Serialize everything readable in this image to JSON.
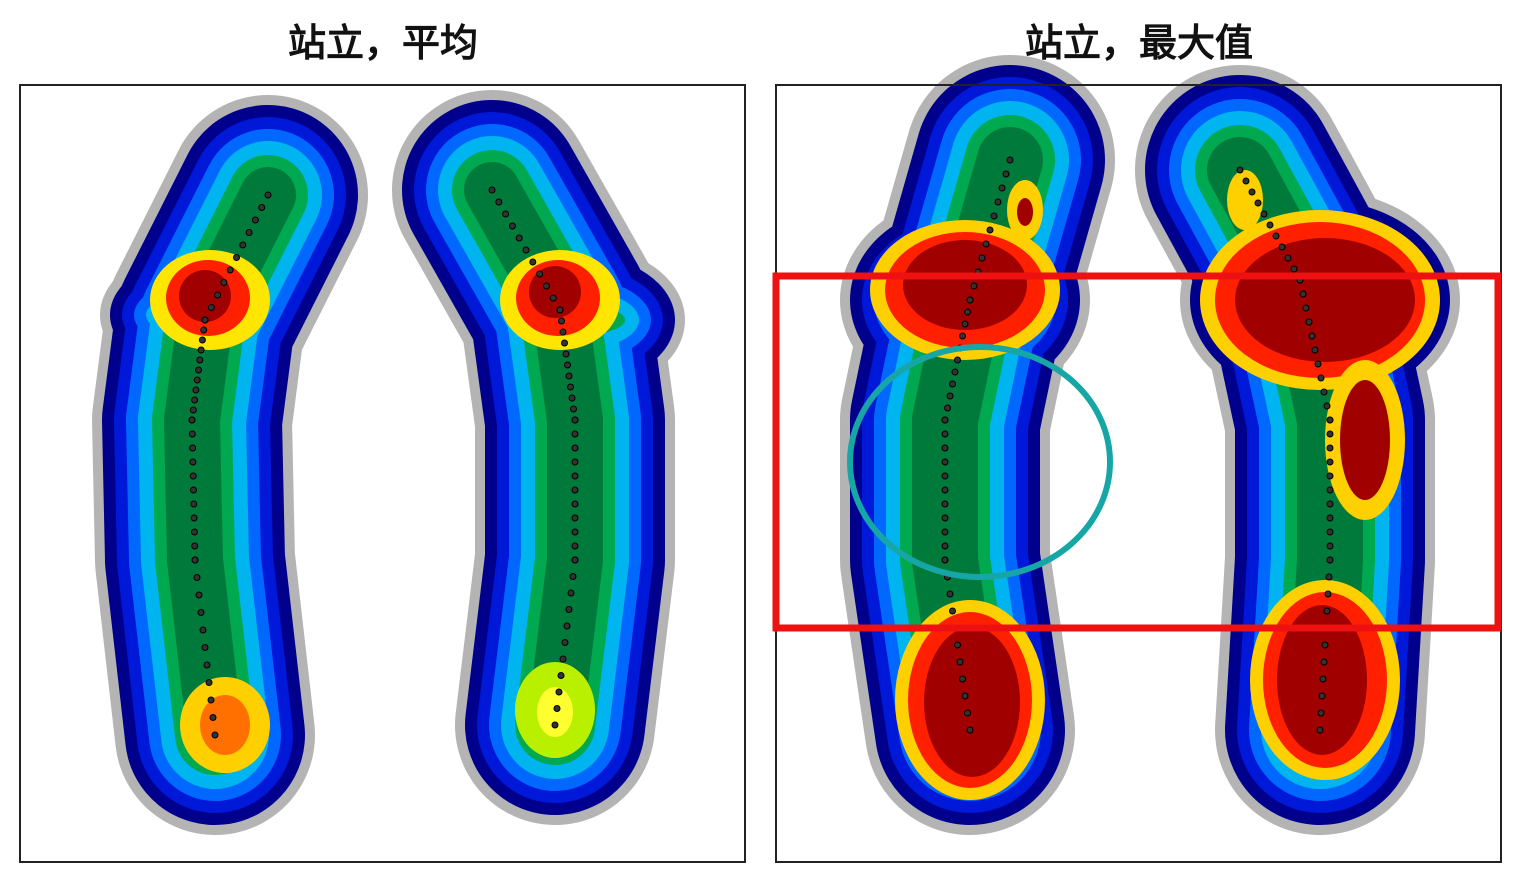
{
  "panels": [
    {
      "title": "站立，平均"
    },
    {
      "title": "站立，最大值"
    }
  ]
}
